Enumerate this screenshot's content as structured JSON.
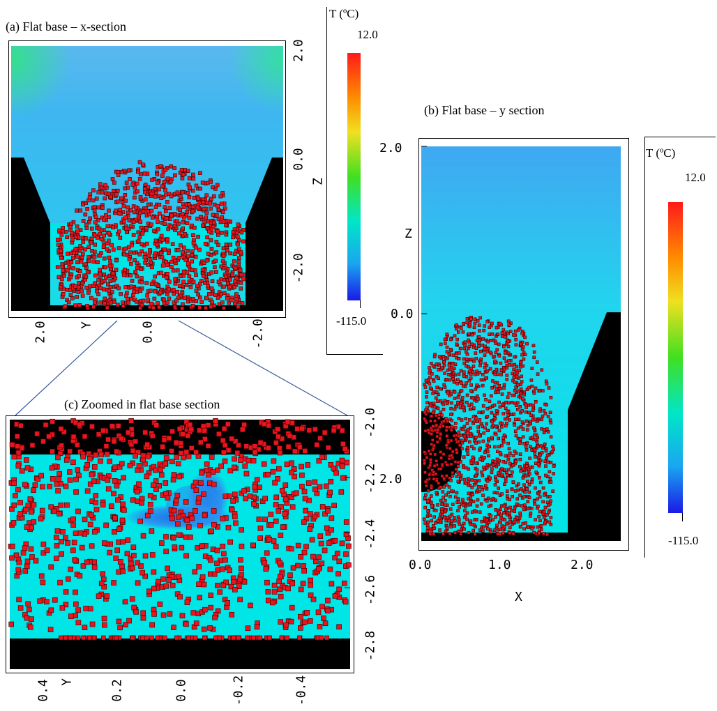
{
  "panel_a": {
    "title": "(a) Flat base – x-section",
    "z_ticks": [
      "2.0",
      "0.0",
      "-2.0"
    ],
    "z_label": "Z",
    "y_ticks": [
      "2.0",
      "0.0",
      "-2.0"
    ],
    "y_label": "Y"
  },
  "colorbar_a": {
    "title": "T (ºC)",
    "max": "12.0",
    "min": "-115.0"
  },
  "panel_b": {
    "title": "(b) Flat base – y section",
    "z_ticks": [
      "2.0",
      "0.0",
      "2.0"
    ],
    "z_label": "Z",
    "x_ticks": [
      "0.0",
      "1.0",
      "2.0"
    ],
    "x_label": "X"
  },
  "colorbar_b": {
    "title": "T (ºC)",
    "max": "12.0",
    "min": "-115.0"
  },
  "panel_c": {
    "title": "(c) Zoomed in flat base section",
    "z_ticks": [
      "-2.0",
      "-2.2",
      "-2.4",
      "-2.6",
      "-2.8"
    ],
    "y_ticks": [
      "0.4",
      "0.2",
      "0.0",
      "-0.2",
      "-0.4"
    ],
    "y_label": "Y"
  },
  "colors": {
    "cyan_fluid": "#00e6e6",
    "sky": "#33c8f0",
    "solid": "#000000",
    "particle": "#e8141e",
    "cold": "#1a7ae6"
  }
}
